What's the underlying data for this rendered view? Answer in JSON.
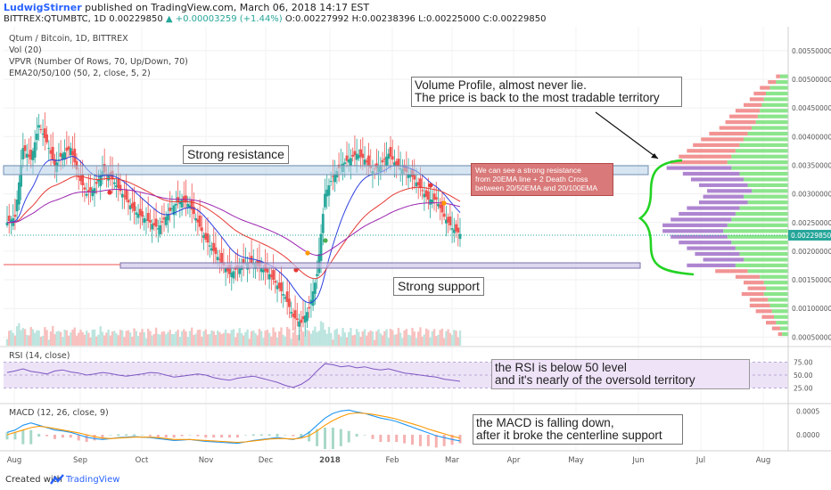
{
  "header": {
    "author": "LudwigStirner",
    "published": "published on TradingView.com, March 06, 2018 14:17 EST",
    "symbol_line": "BITTREX:QTUMBTC, 1D",
    "last": "0.00229850",
    "change": "▲ +0.00003259 (+1.44%)",
    "ohlc": "O:0.00227992 H:0.00238396 L:0.00225000 C:0.00229850"
  },
  "indicators": {
    "title": "Qtum / Bitcoin, 1D, BITTREX",
    "vol": "Vol (20)",
    "vpvr": "VPVR (Number Of Rows, 70, Up/Down, 70)",
    "ema": "EMA20/50/100 (50, 2, close, 5, 2)",
    "rsi": "RSI (14, close)",
    "macd": "MACD (12, 26, close, 9)"
  },
  "annotations": {
    "volume_profile": [
      "Volume Profile, almost never lie.",
      "The price is back to the most tradable territory"
    ],
    "resistance": "Strong resistance",
    "support": "Strong support",
    "callout": [
      "We can see a strong resistance",
      "from 20EMA line + 2 Death Cross",
      "between 20/50EMA and 20/100EMA"
    ],
    "rsi": [
      "the RSI is below 50 level",
      "and it's nearly of the oversold territory"
    ],
    "macd": [
      "the MACD is falling down,",
      "after it broke the centerline support"
    ]
  },
  "footer": {
    "created_with": "Created with",
    "brand": "TradingView"
  },
  "colors": {
    "up": "#26a69a",
    "down": "#ef5350",
    "ema20": "#2c3fe0",
    "ema50": "#e53935",
    "ema100": "#9c27b0",
    "ema_green": "#2e9e3e",
    "rsi": "#7e57c2",
    "macd_line": "#2196f3",
    "signal_line": "#ff9800",
    "vp_up": "#7ee27e",
    "vp_down": "#f08080",
    "vp_mid": "#a070c8",
    "last_price": "#26a69a"
  },
  "chart_data": {
    "type": "candlestick",
    "x_tick_labels": [
      "Aug",
      "Sep",
      "Oct",
      "Nov",
      "Dec",
      "2018",
      "Feb",
      "Mar",
      "Apr",
      "May",
      "Jun",
      "Jul",
      "Aug"
    ],
    "price_axis": [
      "0.00550000",
      "0.00500000",
      "0.00450000",
      "0.00400000",
      "0.00350000",
      "0.00300000",
      "0.00250000",
      "0.00200000",
      "0.00150000",
      "0.00100000",
      "0.00050000"
    ],
    "price_range": [
      0.00035,
      0.0057
    ],
    "last_price_label": "0.00229850",
    "close_series": [
      0.0025,
      0.0026,
      0.0038,
      0.0036,
      0.0042,
      0.0039,
      0.0035,
      0.0037,
      0.0038,
      0.0033,
      0.003,
      0.0031,
      0.0034,
      0.0033,
      0.0031,
      0.0029,
      0.0027,
      0.0026,
      0.0025,
      0.0024,
      0.0026,
      0.0028,
      0.0029,
      0.0028,
      0.0025,
      0.0022,
      0.002,
      0.0018,
      0.0016,
      0.0017,
      0.0018,
      0.0018,
      0.0017,
      0.0016,
      0.0014,
      0.0012,
      0.00085,
      0.00075,
      0.001,
      0.0016,
      0.003,
      0.0033,
      0.0035,
      0.0036,
      0.0037,
      0.0036,
      0.0034,
      0.0035,
      0.0037,
      0.0035,
      0.0034,
      0.0033,
      0.0031,
      0.0029,
      0.0029,
      0.0026,
      0.0024,
      0.0023
    ],
    "vp_rows": [
      {
        "price": 0.00505,
        "up": 0.2,
        "down": 0.1
      },
      {
        "price": 0.00495,
        "up": 0.3,
        "down": 0.2
      },
      {
        "price": 0.00485,
        "up": 0.45,
        "down": 0.25
      },
      {
        "price": 0.00475,
        "up": 0.55,
        "down": 0.3
      },
      {
        "price": 0.00465,
        "up": 0.6,
        "down": 0.35
      },
      {
        "price": 0.00455,
        "up": 0.65,
        "down": 0.45
      },
      {
        "price": 0.00445,
        "up": 0.7,
        "down": 0.6
      },
      {
        "price": 0.00435,
        "up": 0.75,
        "down": 0.7
      },
      {
        "price": 0.00425,
        "up": 0.8,
        "down": 0.75
      },
      {
        "price": 0.00415,
        "up": 0.9,
        "down": 0.8
      },
      {
        "price": 0.00405,
        "up": 1.0,
        "down": 0.95
      },
      {
        "price": 0.00395,
        "up": 1.1,
        "down": 1.05
      },
      {
        "price": 0.00385,
        "up": 1.2,
        "down": 1.15
      },
      {
        "price": 0.00375,
        "up": 1.3,
        "down": 1.2
      },
      {
        "price": 0.00365,
        "up": 1.4,
        "down": 1.3
      },
      {
        "price": 0.00355,
        "up": 1.5,
        "down": 1.4
      },
      {
        "price": 0.00345,
        "up": 1.4,
        "down": 1.6
      },
      {
        "price": 0.00335,
        "up": 1.2,
        "down": 1.4
      },
      {
        "price": 0.00325,
        "up": 1.1,
        "down": 1.3
      },
      {
        "price": 0.00315,
        "up": 1.0,
        "down": 1.2
      },
      {
        "price": 0.00305,
        "up": 0.9,
        "down": 1.1
      },
      {
        "price": 0.00295,
        "up": 1.1,
        "down": 1.0
      },
      {
        "price": 0.00285,
        "up": 1.0,
        "down": 1.2
      },
      {
        "price": 0.00275,
        "up": 1.2,
        "down": 1.3
      },
      {
        "price": 0.00265,
        "up": 1.3,
        "down": 1.4
      },
      {
        "price": 0.00255,
        "up": 1.4,
        "down": 1.5
      },
      {
        "price": 0.00245,
        "up": 1.5,
        "down": 1.6
      },
      {
        "price": 0.00235,
        "up": 1.6,
        "down": 1.5
      },
      {
        "price": 0.00225,
        "up": 1.5,
        "down": 1.4
      },
      {
        "price": 0.00215,
        "up": 1.4,
        "down": 1.3
      },
      {
        "price": 0.00205,
        "up": 1.3,
        "down": 1.2
      },
      {
        "price": 0.00195,
        "up": 1.2,
        "down": 1.1
      },
      {
        "price": 0.00185,
        "up": 1.1,
        "down": 1.0
      },
      {
        "price": 0.00175,
        "up": 1.3,
        "down": 1.2
      },
      {
        "price": 0.00165,
        "up": 1.0,
        "down": 0.8
      },
      {
        "price": 0.00155,
        "up": 0.7,
        "down": 0.6
      },
      {
        "price": 0.00145,
        "up": 0.6,
        "down": 0.5
      },
      {
        "price": 0.00135,
        "up": 0.55,
        "down": 0.45
      },
      {
        "price": 0.00125,
        "up": 0.6,
        "down": 0.55
      },
      {
        "price": 0.00115,
        "up": 0.5,
        "down": 0.45
      },
      {
        "price": 0.00105,
        "up": 0.45,
        "down": 0.5
      },
      {
        "price": 0.00095,
        "up": 0.4,
        "down": 0.4
      },
      {
        "price": 0.00085,
        "up": 0.35,
        "down": 0.3
      },
      {
        "price": 0.00075,
        "up": 0.3,
        "down": 0.25
      },
      {
        "price": 0.00065,
        "up": 0.2,
        "down": 0.2
      },
      {
        "price": 0.00055,
        "up": 0.15,
        "down": 0.1
      }
    ],
    "rsi": {
      "levels": [
        75,
        50,
        25
      ],
      "values": [
        55,
        58,
        62,
        57,
        55,
        52,
        58,
        60,
        56,
        54,
        50,
        52,
        55,
        53,
        50,
        48,
        50,
        52,
        55,
        54,
        50,
        46,
        48,
        50,
        52,
        50,
        45,
        42,
        40,
        44,
        46,
        48,
        44,
        40,
        36,
        30,
        26,
        32,
        42,
        58,
        72,
        70,
        66,
        68,
        64,
        66,
        62,
        60,
        62,
        58,
        54,
        52,
        50,
        48,
        46,
        42,
        40,
        38
      ]
    },
    "macd": {
      "axis": [
        "0.0005",
        "0.0000"
      ],
      "macd_line": [
        5e-05,
        0.0001,
        0.0002,
        0.00025,
        0.0002,
        0.00015,
        0.0001,
        8e-05,
        5e-05,
        0.0,
        -5e-05,
        -8e-05,
        -0.0001,
        -8e-05,
        -6e-05,
        -5e-05,
        -4e-05,
        -5e-05,
        -6e-05,
        -8e-05,
        -0.0001,
        -0.00012,
        -0.00011,
        -0.0001,
        -0.00012,
        -0.00014,
        -0.00015,
        -0.00016,
        -0.00017,
        -0.00018,
        -0.00015,
        -0.00012,
        -0.0001,
        -8e-05,
        -6e-05,
        -8e-05,
        -0.0001,
        -5e-05,
        5e-05,
        0.0002,
        0.00035,
        0.00045,
        0.0005,
        0.00052,
        0.00048,
        0.00045,
        0.0004,
        0.00035,
        0.00032,
        0.00028,
        0.00022,
        0.00016,
        0.0001,
        4e-05,
        -2e-05,
        -6e-05,
        -0.0001,
        -0.00013
      ],
      "signal_line": [
        0.0,
        5e-05,
        0.0001,
        0.00015,
        0.00018,
        0.00016,
        0.00013,
        0.0001,
        7e-05,
        4e-05,
        0.0,
        -4e-05,
        -7e-05,
        -8e-05,
        -7e-05,
        -6e-05,
        -5e-05,
        -5e-05,
        -5e-05,
        -6e-05,
        -8e-05,
        -0.0001,
        -0.0001,
        -0.0001,
        -0.00011,
        -0.00012,
        -0.00013,
        -0.00014,
        -0.00015,
        -0.00016,
        -0.00015,
        -0.00013,
        -0.00011,
        -9e-05,
        -8e-05,
        -8e-05,
        -9e-05,
        -7e-05,
        -2e-05,
        8e-05,
        0.0002,
        0.0003,
        0.00038,
        0.00044,
        0.00046,
        0.00045,
        0.00043,
        0.0004,
        0.00037,
        0.00033,
        0.00028,
        0.00023,
        0.00018,
        0.00012,
        7e-05,
        2e-05,
        -3e-05,
        -7e-05
      ]
    }
  }
}
